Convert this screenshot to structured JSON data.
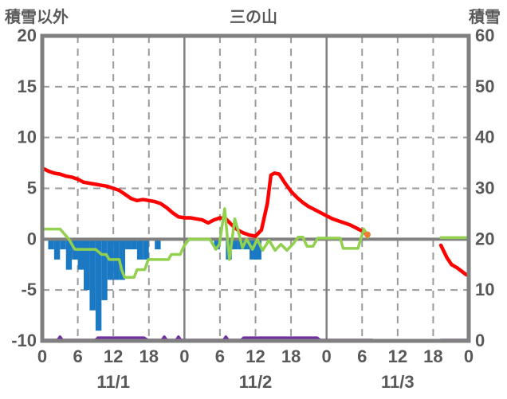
{
  "header": {
    "left_axis_title": "積雪以外",
    "chart_title": "三の山",
    "right_axis_title": "積雪"
  },
  "chart_data": {
    "type": "composite",
    "title": "三の山",
    "x_axis": {
      "range": [
        0,
        72
      ],
      "tick_step": 6,
      "solid_line_every": 24,
      "hour_tick_labels": [
        "0",
        "6",
        "12",
        "18",
        "0",
        "6",
        "12",
        "18",
        "0",
        "6",
        "12",
        "18",
        "0"
      ],
      "day_labels": [
        {
          "label": "11/1",
          "hour": 12
        },
        {
          "label": "11/2",
          "hour": 36
        },
        {
          "label": "11/3",
          "hour": 60
        }
      ]
    },
    "left_axis": {
      "title": "積雪以外",
      "min": -10,
      "max": 20,
      "ticks": [
        20,
        15,
        10,
        5,
        0,
        -5,
        -10
      ]
    },
    "right_axis": {
      "title": "積雪",
      "min": 0,
      "max": 60,
      "ticks": [
        60,
        50,
        40,
        30,
        20,
        10,
        0
      ]
    },
    "grid": {
      "horizontal_dashed": [
        15,
        10,
        5,
        -5
      ],
      "zero_line": 0
    },
    "colors": {
      "temperature": "#FF0000",
      "snow_depth": "#92D050",
      "precipitation": "#1B79C4",
      "snowfall": "#7030A0",
      "marker": "#ED7D31",
      "border": "#808080",
      "grid": "#9B9B9B",
      "text": "#595959"
    },
    "series": [
      {
        "name": "precipitation-bars",
        "type": "bar",
        "axis": "left",
        "direction": "down",
        "color_key": "precipitation",
        "bars": [
          [
            1,
            1
          ],
          [
            2,
            2
          ],
          [
            3,
            1
          ],
          [
            4,
            3
          ],
          [
            5,
            2
          ],
          [
            6,
            3
          ],
          [
            7,
            5
          ],
          [
            8,
            7
          ],
          [
            9,
            9
          ],
          [
            10,
            6
          ],
          [
            11,
            4
          ],
          [
            12,
            4
          ],
          [
            13,
            4
          ],
          [
            14,
            1
          ],
          [
            15,
            1
          ],
          [
            16,
            2
          ],
          [
            17,
            2
          ],
          [
            19,
            1
          ],
          [
            29,
            1
          ],
          [
            31,
            2
          ],
          [
            32,
            1
          ],
          [
            33,
            1
          ],
          [
            34,
            1
          ],
          [
            35,
            2
          ],
          [
            36,
            2
          ]
        ]
      },
      {
        "name": "snowfall-line",
        "type": "line",
        "axis": "right",
        "color_key": "snowfall",
        "width": 3.5,
        "segments": [
          [
            [
              0,
              0.15
            ],
            [
              2.6,
              0.15
            ],
            [
              3,
              0.8
            ],
            [
              3.4,
              0.15
            ],
            [
              9,
              0.15
            ],
            [
              9.4,
              0.6
            ],
            [
              17.2,
              0.6
            ],
            [
              17.8,
              0.15
            ],
            [
              20.2,
              0.15
            ],
            [
              20.6,
              0.8
            ],
            [
              21,
              0.15
            ],
            [
              22.6,
              0.15
            ],
            [
              23,
              0.8
            ],
            [
              23.4,
              0.15
            ],
            [
              30.6,
              0.15
            ],
            [
              31,
              0.8
            ],
            [
              31.4,
              0.15
            ],
            [
              33.6,
              0.15
            ],
            [
              34,
              0.6
            ],
            [
              46.4,
              0.6
            ],
            [
              46.9,
              0.15
            ],
            [
              55.7,
              0.15
            ]
          ],
          [
            [
              67.3,
              0.15
            ],
            [
              71.9,
              0.15
            ]
          ]
        ]
      },
      {
        "name": "temperature-line",
        "type": "line",
        "axis": "left",
        "color_key": "temperature",
        "width": 4.5,
        "segments": [
          [
            [
              0,
              7.0
            ],
            [
              1,
              6.7
            ],
            [
              2,
              6.5
            ],
            [
              3,
              6.4
            ],
            [
              4,
              6.2
            ],
            [
              5,
              6.1
            ],
            [
              6,
              5.9
            ],
            [
              7,
              5.6
            ],
            [
              8,
              5.5
            ],
            [
              9,
              5.4
            ],
            [
              10,
              5.3
            ],
            [
              11,
              5.2
            ],
            [
              12,
              5.0
            ],
            [
              13,
              4.8
            ],
            [
              14,
              4.4
            ],
            [
              15,
              4.0
            ],
            [
              16,
              3.8
            ],
            [
              17,
              3.9
            ],
            [
              18,
              3.8
            ],
            [
              19,
              3.7
            ],
            [
              20,
              3.5
            ],
            [
              21,
              3.1
            ],
            [
              22,
              2.6
            ],
            [
              23,
              2.2
            ],
            [
              24,
              2.1
            ],
            [
              25,
              2.1
            ],
            [
              26,
              2.0
            ],
            [
              27,
              1.9
            ],
            [
              28,
              1.6
            ],
            [
              29,
              1.9
            ],
            [
              30,
              2.1
            ],
            [
              31,
              2.0
            ],
            [
              32,
              1.4
            ],
            [
              33,
              0.9
            ],
            [
              34,
              0.6
            ],
            [
              35,
              0.4
            ],
            [
              36,
              0.3
            ],
            [
              37,
              0.9
            ],
            [
              38,
              3.5
            ],
            [
              38.6,
              6.3
            ],
            [
              39.2,
              6.5
            ],
            [
              40,
              6.4
            ],
            [
              41,
              5.5
            ],
            [
              42,
              4.7
            ],
            [
              43,
              4.1
            ],
            [
              44,
              3.6
            ],
            [
              45,
              3.2
            ],
            [
              46,
              2.9
            ],
            [
              47,
              2.6
            ],
            [
              48,
              2.3
            ],
            [
              49,
              2.0
            ],
            [
              50,
              1.8
            ],
            [
              51,
              1.6
            ],
            [
              52,
              1.4
            ],
            [
              53,
              1.1
            ],
            [
              54,
              0.8
            ],
            [
              55,
              0.4
            ]
          ],
          [
            [
              67.3,
              -0.6
            ],
            [
              68.3,
              -1.8
            ],
            [
              69.1,
              -2.5
            ],
            [
              70,
              -2.8
            ],
            [
              71.6,
              -3.5
            ]
          ]
        ]
      },
      {
        "name": "snow-depth-line",
        "type": "line",
        "axis": "right",
        "color_key": "snow_depth",
        "width": 3.5,
        "segments": [
          [
            [
              0,
              22
            ],
            [
              3,
              22
            ],
            [
              4.5,
              20
            ],
            [
              5.5,
              18
            ],
            [
              9,
              18
            ],
            [
              10,
              17
            ],
            [
              10.8,
              17
            ],
            [
              11.3,
              16
            ],
            [
              13,
              16
            ],
            [
              13.4,
              14
            ],
            [
              13.9,
              12.5
            ],
            [
              15.5,
              12.5
            ],
            [
              16,
              14
            ],
            [
              17.3,
              14
            ],
            [
              17.9,
              16
            ],
            [
              21.3,
              16
            ],
            [
              21.8,
              17
            ],
            [
              23.3,
              17
            ],
            [
              23.9,
              18.6
            ],
            [
              24.8,
              20
            ],
            [
              28.3,
              20
            ],
            [
              28.8,
              19
            ],
            [
              29.3,
              18
            ],
            [
              29.9,
              19
            ],
            [
              30.8,
              26
            ],
            [
              31.6,
              16
            ],
            [
              32.5,
              24
            ],
            [
              33,
              22
            ],
            [
              33.8,
              18.3
            ],
            [
              34.5,
              20
            ],
            [
              35.5,
              18
            ],
            [
              36.3,
              20
            ],
            [
              37.2,
              17.8
            ],
            [
              38.3,
              19.8
            ],
            [
              39.3,
              17.8
            ],
            [
              40.3,
              19
            ],
            [
              41.3,
              17.8
            ],
            [
              42.3,
              19
            ],
            [
              43.2,
              20.4
            ],
            [
              44,
              20.4
            ],
            [
              44.7,
              18.6
            ],
            [
              45.7,
              18.6
            ],
            [
              46.5,
              20.2
            ],
            [
              50.3,
              20.2
            ],
            [
              50.8,
              18.2
            ],
            [
              53.3,
              18.2
            ],
            [
              54.3,
              22
            ],
            [
              55,
              20.4
            ]
          ],
          [
            [
              67.3,
              20.3
            ],
            [
              71.6,
              20.3
            ]
          ]
        ]
      }
    ],
    "marker": {
      "name": "latest-value-marker",
      "axis": "left",
      "point": [
        54.9,
        0.45
      ],
      "radius": 4,
      "color_key": "marker"
    }
  }
}
